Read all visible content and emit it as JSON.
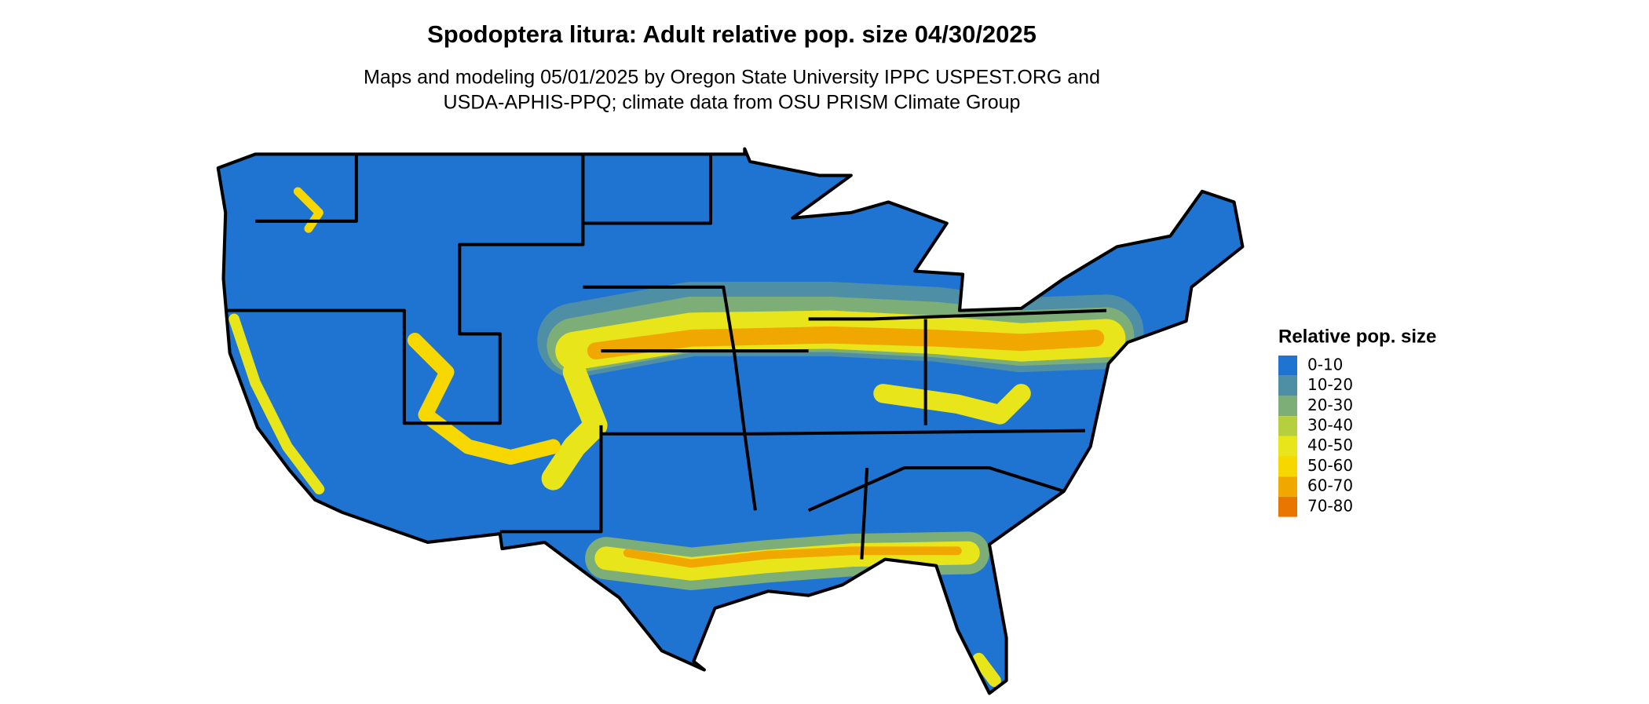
{
  "header": {
    "title": "Spodoptera litura: Adult relative pop. size 04/30/2025",
    "subtitle_lines": [
      "Maps and modeling 05/01/2025 by Oregon State University IPPC USPEST.ORG and",
      "USDA-APHIS-PPQ; climate data from OSU PRISM Climate Group"
    ]
  },
  "legend": {
    "title": "Relative pop. size",
    "items": [
      {
        "label": "0-10",
        "color": "#1f74d1"
      },
      {
        "label": "10-20",
        "color": "#4f8fa6"
      },
      {
        "label": "20-30",
        "color": "#7dae78"
      },
      {
        "label": "30-40",
        "color": "#b5cf3f"
      },
      {
        "label": "40-50",
        "color": "#e8e61a"
      },
      {
        "label": "50-60",
        "color": "#f6d800"
      },
      {
        "label": "60-70",
        "color": "#f0a800"
      },
      {
        "label": "70-80",
        "color": "#e97600"
      }
    ]
  }
}
